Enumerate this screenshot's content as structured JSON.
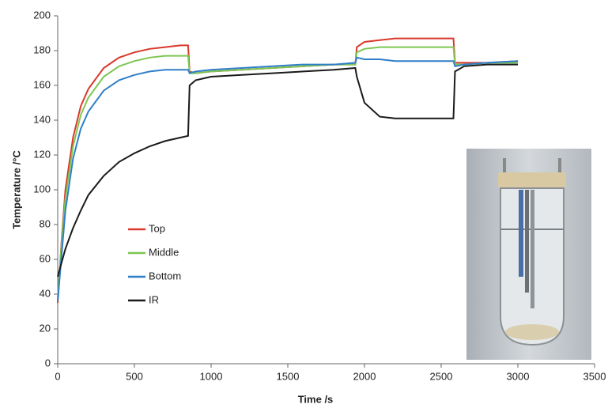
{
  "chart_data": {
    "type": "line",
    "x_label": "Time /s",
    "y_label": "Temperature /°C",
    "x": [
      0,
      25,
      50,
      100,
      150,
      200,
      300,
      400,
      500,
      600,
      700,
      800,
      850,
      860,
      900,
      1000,
      1200,
      1400,
      1600,
      1800,
      1940,
      1950,
      2000,
      2100,
      2200,
      2400,
      2580,
      2590,
      2650,
      2800,
      3000
    ],
    "series": [
      {
        "name": "Top",
        "color": "#d9382b",
        "values": [
          35,
          70,
          100,
          130,
          148,
          158,
          170,
          176,
          179,
          181,
          182,
          183,
          183,
          168,
          167,
          168,
          169,
          170,
          171,
          172,
          172,
          182,
          185,
          186,
          187,
          187,
          187,
          173,
          173,
          173,
          174
        ]
      },
      {
        "name": "Middle",
        "color": "#7dc653",
        "values": [
          38,
          68,
          95,
          125,
          143,
          153,
          165,
          171,
          174,
          176,
          177,
          177,
          177,
          167,
          167,
          168,
          169,
          170,
          171,
          172,
          172,
          179,
          181,
          182,
          182,
          182,
          182,
          172,
          172,
          173,
          173
        ]
      },
      {
        "name": "Bottom",
        "color": "#2f7fc8",
        "values": [
          36,
          62,
          88,
          118,
          135,
          145,
          157,
          163,
          166,
          168,
          169,
          169,
          169,
          167,
          168,
          169,
          170,
          171,
          172,
          172,
          173,
          176,
          175,
          175,
          174,
          174,
          174,
          171,
          172,
          173,
          174
        ]
      },
      {
        "name": "IR",
        "color": "#1a1a1a",
        "values": [
          50,
          58,
          66,
          78,
          88,
          97,
          108,
          116,
          121,
          125,
          128,
          130,
          131,
          160,
          163,
          165,
          166,
          167,
          168,
          169,
          170,
          165,
          150,
          142,
          141,
          141,
          141,
          168,
          171,
          172,
          172
        ]
      }
    ],
    "xlim": [
      0,
      3500
    ],
    "xticks": [
      0,
      500,
      1000,
      1500,
      2000,
      2500,
      3000,
      3500
    ],
    "ylim": [
      0,
      200
    ],
    "yticks": [
      0,
      20,
      40,
      60,
      80,
      100,
      120,
      140,
      160,
      180,
      200
    ],
    "grid": false,
    "legend": "center-left"
  }
}
